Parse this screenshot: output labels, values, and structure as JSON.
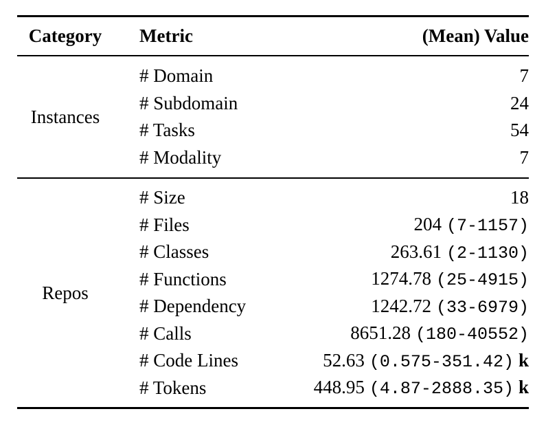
{
  "colors": {
    "text": "#000000",
    "rule": "#000000",
    "background": "#ffffff"
  },
  "table": {
    "header": {
      "category": "Category",
      "metric": "Metric",
      "value": "(Mean) Value"
    },
    "sections": [
      {
        "category": "Instances",
        "rows": [
          {
            "metric": "# Domain",
            "mean": "7",
            "range": "",
            "suffix": ""
          },
          {
            "metric": "# Subdomain",
            "mean": "24",
            "range": "",
            "suffix": ""
          },
          {
            "metric": "# Tasks",
            "mean": "54",
            "range": "",
            "suffix": ""
          },
          {
            "metric": "# Modality",
            "mean": "7",
            "range": "",
            "suffix": ""
          }
        ]
      },
      {
        "category": "Repos",
        "rows": [
          {
            "metric": "# Size",
            "mean": "18",
            "range": "",
            "suffix": ""
          },
          {
            "metric": "# Files",
            "mean": "204",
            "range": "(7-1157)",
            "suffix": ""
          },
          {
            "metric": "# Classes",
            "mean": "263.61",
            "range": "(2-1130)",
            "suffix": ""
          },
          {
            "metric": "# Functions",
            "mean": "1274.78",
            "range": "(25-4915)",
            "suffix": ""
          },
          {
            "metric": "# Dependency",
            "mean": "1242.72",
            "range": "(33-6979)",
            "suffix": ""
          },
          {
            "metric": "# Calls",
            "mean": "8651.28",
            "range": "(180-40552)",
            "suffix": ""
          },
          {
            "metric": "# Code Lines",
            "mean": "52.63",
            "range": "(0.575-351.42)",
            "suffix": "k"
          },
          {
            "metric": "# Tokens",
            "mean": "448.95",
            "range": "(4.87-2888.35)",
            "suffix": "k"
          }
        ]
      }
    ]
  }
}
